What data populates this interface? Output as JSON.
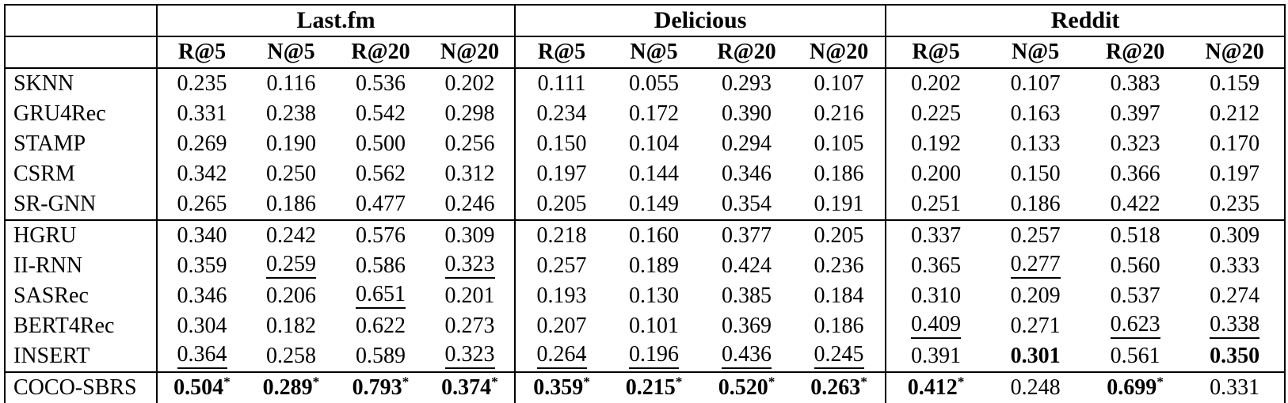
{
  "colors": {
    "border": "#000000",
    "text": "#000000",
    "background": "#ffffff"
  },
  "table": {
    "corner_label": "",
    "groups": [
      {
        "label": "Last.fm"
      },
      {
        "label": "Delicious"
      },
      {
        "label": "Reddit"
      }
    ],
    "metrics": [
      "R@5",
      "N@5",
      "R@20",
      "N@20"
    ],
    "row_groups": [
      {
        "name": "session-based-baselines",
        "rows": [
          {
            "model": "SKNN",
            "cells": [
              {
                "v": "0.235"
              },
              {
                "v": "0.116"
              },
              {
                "v": "0.536"
              },
              {
                "v": "0.202"
              },
              {
                "v": "0.111"
              },
              {
                "v": "0.055"
              },
              {
                "v": "0.293"
              },
              {
                "v": "0.107"
              },
              {
                "v": "0.202"
              },
              {
                "v": "0.107"
              },
              {
                "v": "0.383"
              },
              {
                "v": "0.159"
              }
            ]
          },
          {
            "model": "GRU4Rec",
            "cells": [
              {
                "v": "0.331"
              },
              {
                "v": "0.238"
              },
              {
                "v": "0.542"
              },
              {
                "v": "0.298"
              },
              {
                "v": "0.234"
              },
              {
                "v": "0.172"
              },
              {
                "v": "0.390"
              },
              {
                "v": "0.216"
              },
              {
                "v": "0.225"
              },
              {
                "v": "0.163"
              },
              {
                "v": "0.397"
              },
              {
                "v": "0.212"
              }
            ]
          },
          {
            "model": "STAMP",
            "cells": [
              {
                "v": "0.269"
              },
              {
                "v": "0.190"
              },
              {
                "v": "0.500"
              },
              {
                "v": "0.256"
              },
              {
                "v": "0.150"
              },
              {
                "v": "0.104"
              },
              {
                "v": "0.294"
              },
              {
                "v": "0.105"
              },
              {
                "v": "0.192"
              },
              {
                "v": "0.133"
              },
              {
                "v": "0.323"
              },
              {
                "v": "0.170"
              }
            ]
          },
          {
            "model": "CSRM",
            "cells": [
              {
                "v": "0.342"
              },
              {
                "v": "0.250"
              },
              {
                "v": "0.562"
              },
              {
                "v": "0.312"
              },
              {
                "v": "0.197"
              },
              {
                "v": "0.144"
              },
              {
                "v": "0.346"
              },
              {
                "v": "0.186"
              },
              {
                "v": "0.200"
              },
              {
                "v": "0.150"
              },
              {
                "v": "0.366"
              },
              {
                "v": "0.197"
              }
            ]
          },
          {
            "model": "SR-GNN",
            "cells": [
              {
                "v": "0.265"
              },
              {
                "v": "0.186"
              },
              {
                "v": "0.477"
              },
              {
                "v": "0.246"
              },
              {
                "v": "0.205"
              },
              {
                "v": "0.149"
              },
              {
                "v": "0.354"
              },
              {
                "v": "0.191"
              },
              {
                "v": "0.251"
              },
              {
                "v": "0.186"
              },
              {
                "v": "0.422"
              },
              {
                "v": "0.235"
              }
            ]
          }
        ]
      },
      {
        "name": "session-aware-baselines",
        "rows": [
          {
            "model": "HGRU",
            "cells": [
              {
                "v": "0.340"
              },
              {
                "v": "0.242"
              },
              {
                "v": "0.576"
              },
              {
                "v": "0.309"
              },
              {
                "v": "0.218"
              },
              {
                "v": "0.160"
              },
              {
                "v": "0.377"
              },
              {
                "v": "0.205"
              },
              {
                "v": "0.337"
              },
              {
                "v": "0.257"
              },
              {
                "v": "0.518"
              },
              {
                "v": "0.309"
              }
            ]
          },
          {
            "model": "II-RNN",
            "cells": [
              {
                "v": "0.359"
              },
              {
                "v": "0.259",
                "u": true
              },
              {
                "v": "0.586"
              },
              {
                "v": "0.323",
                "u": true
              },
              {
                "v": "0.257"
              },
              {
                "v": "0.189"
              },
              {
                "v": "0.424"
              },
              {
                "v": "0.236"
              },
              {
                "v": "0.365"
              },
              {
                "v": "0.277",
                "u": true
              },
              {
                "v": "0.560"
              },
              {
                "v": "0.333"
              }
            ]
          },
          {
            "model": "SASRec",
            "cells": [
              {
                "v": "0.346"
              },
              {
                "v": "0.206"
              },
              {
                "v": "0.651",
                "u": true
              },
              {
                "v": "0.201"
              },
              {
                "v": "0.193"
              },
              {
                "v": "0.130"
              },
              {
                "v": "0.385"
              },
              {
                "v": "0.184"
              },
              {
                "v": "0.310"
              },
              {
                "v": "0.209"
              },
              {
                "v": "0.537"
              },
              {
                "v": "0.274"
              }
            ]
          },
          {
            "model": "BERT4Rec",
            "cells": [
              {
                "v": "0.304"
              },
              {
                "v": "0.182"
              },
              {
                "v": "0.622"
              },
              {
                "v": "0.273"
              },
              {
                "v": "0.207"
              },
              {
                "v": "0.101"
              },
              {
                "v": "0.369"
              },
              {
                "v": "0.186"
              },
              {
                "v": "0.409",
                "u": true
              },
              {
                "v": "0.271"
              },
              {
                "v": "0.623",
                "u": true
              },
              {
                "v": "0.338",
                "u": true
              }
            ]
          },
          {
            "model": "INSERT",
            "cells": [
              {
                "v": "0.364",
                "u": true
              },
              {
                "v": "0.258"
              },
              {
                "v": "0.589"
              },
              {
                "v": "0.323",
                "u": true
              },
              {
                "v": "0.264",
                "u": true
              },
              {
                "v": "0.196",
                "u": true
              },
              {
                "v": "0.436",
                "u": true
              },
              {
                "v": "0.245",
                "u": true
              },
              {
                "v": "0.391"
              },
              {
                "v": "0.301",
                "b": true
              },
              {
                "v": "0.561"
              },
              {
                "v": "0.350",
                "b": true
              }
            ]
          }
        ]
      },
      {
        "name": "proposed-model",
        "rows": [
          {
            "model": "COCO-SBRS",
            "cells": [
              {
                "v": "0.504",
                "b": true,
                "s": true
              },
              {
                "v": "0.289",
                "b": true,
                "s": true
              },
              {
                "v": "0.793",
                "b": true,
                "s": true
              },
              {
                "v": "0.374",
                "b": true,
                "s": true
              },
              {
                "v": "0.359",
                "b": true,
                "s": true
              },
              {
                "v": "0.215",
                "b": true,
                "s": true
              },
              {
                "v": "0.520",
                "b": true,
                "s": true
              },
              {
                "v": "0.263",
                "b": true,
                "s": true
              },
              {
                "v": "0.412",
                "b": true,
                "s": true
              },
              {
                "v": "0.248"
              },
              {
                "v": "0.699",
                "b": true,
                "s": true
              },
              {
                "v": "0.331"
              }
            ]
          }
        ]
      }
    ]
  }
}
